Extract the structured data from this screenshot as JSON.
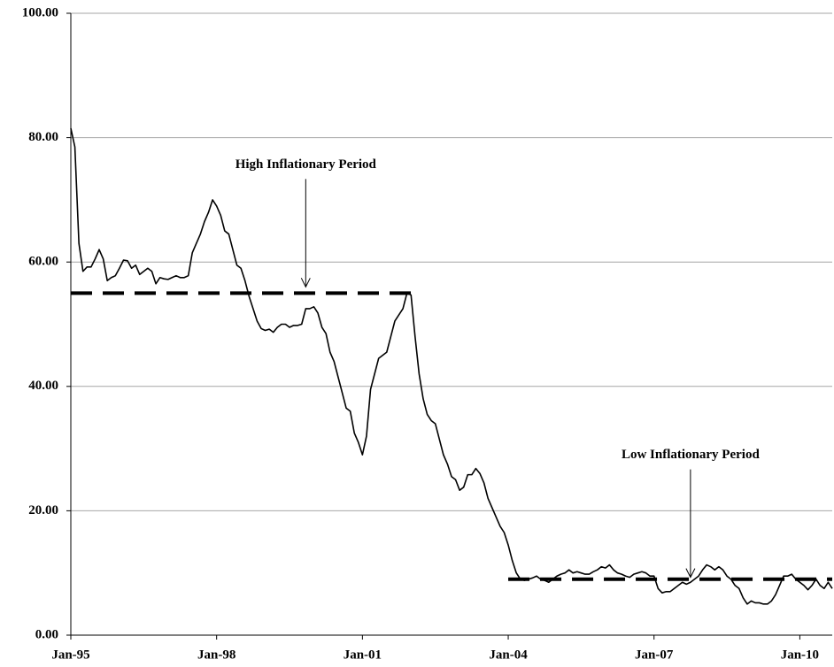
{
  "chart_data": {
    "type": "line",
    "categories": [
      "Jan-95",
      null,
      null,
      null,
      null,
      null,
      null,
      null,
      null,
      null,
      null,
      null,
      null,
      null,
      null,
      null,
      null,
      null,
      null,
      null,
      null,
      null,
      null,
      null,
      null,
      null,
      null,
      null,
      null,
      null,
      null,
      null,
      null,
      null,
      null,
      null,
      "Jan-98",
      null,
      null,
      null,
      null,
      null,
      null,
      null,
      null,
      null,
      null,
      null,
      null,
      null,
      null,
      null,
      null,
      null,
      null,
      null,
      null,
      null,
      null,
      null,
      null,
      null,
      null,
      null,
      null,
      null,
      null,
      null,
      null,
      null,
      null,
      null,
      "Jan-01",
      null,
      null,
      null,
      null,
      null,
      null,
      null,
      null,
      null,
      null,
      null,
      null,
      null,
      null,
      null,
      null,
      null,
      null,
      null,
      null,
      null,
      null,
      null,
      null,
      null,
      null,
      null,
      null,
      null,
      null,
      null,
      null,
      null,
      null,
      null,
      "Jan-04",
      null,
      null,
      null,
      null,
      null,
      null,
      null,
      null,
      null,
      null,
      null,
      null,
      null,
      null,
      null,
      null,
      null,
      null,
      null,
      null,
      null,
      null,
      null,
      null,
      null,
      null,
      null,
      null,
      null,
      null,
      null,
      null,
      null,
      null,
      null,
      "Jan-07",
      null,
      null,
      null,
      null,
      null,
      null,
      null,
      null,
      null,
      null,
      null,
      null,
      null,
      null,
      null,
      null,
      null,
      null,
      null,
      null,
      null,
      null,
      null,
      null,
      null,
      null,
      null,
      null,
      null,
      null,
      null,
      null,
      null,
      null,
      null,
      "Jan-10",
      null,
      null,
      null,
      null,
      null,
      null,
      null,
      null
    ],
    "values": [
      81.5,
      78.5,
      63,
      58.5,
      59.2,
      59.2,
      60.5,
      62,
      60.5,
      57,
      57.5,
      57.8,
      59,
      60.3,
      60.2,
      59,
      59.5,
      58,
      58.5,
      59,
      58.5,
      56.5,
      57.5,
      57.3,
      57.2,
      57.5,
      57.8,
      57.5,
      57.5,
      57.8,
      61.5,
      63,
      64.5,
      66.5,
      68,
      70,
      69,
      67.5,
      65,
      64.5,
      62,
      59.5,
      59,
      57,
      54.5,
      52.5,
      50.5,
      49.3,
      49,
      49.2,
      48.7,
      49.5,
      50,
      50,
      49.5,
      49.8,
      49.8,
      50,
      52.5,
      52.5,
      52.8,
      51.8,
      49.5,
      48.5,
      45.5,
      44,
      41.5,
      39,
      36.5,
      36,
      32.5,
      31,
      29,
      32,
      39.5,
      42,
      44.5,
      45,
      45.5,
      48,
      50.5,
      51.5,
      52.5,
      55,
      54.7,
      48,
      42,
      38,
      35.5,
      34.5,
      34,
      31.5,
      29,
      27.5,
      25.5,
      25,
      23.3,
      23.8,
      25.8,
      25.8,
      26.8,
      26,
      24.5,
      22,
      20.5,
      19,
      17.5,
      16.5,
      14.5,
      12,
      10,
      9,
      8.8,
      9,
      9.2,
      9.5,
      9,
      8.8,
      8.5,
      9,
      9.5,
      9.8,
      10,
      10.5,
      10,
      10.2,
      10,
      9.8,
      9.8,
      10.2,
      10.5,
      11,
      10.8,
      11.3,
      10.5,
      10,
      9.8,
      9.5,
      9.3,
      9.8,
      10,
      10.2,
      10,
      9.5,
      9.5,
      7.5,
      6.8,
      7,
      7,
      7.5,
      8,
      8.5,
      8.2,
      8.5,
      9,
      9.5,
      10.5,
      11.3,
      11,
      10.5,
      11,
      10.5,
      9.5,
      9,
      8,
      7.5,
      6,
      5,
      5.5,
      5.2,
      5.2,
      5,
      5,
      5.5,
      6.5,
      8,
      9.5,
      9.5,
      9.8,
      9,
      8.5,
      8,
      7.3,
      8,
      9,
      8,
      7.5,
      8.5,
      7.5
    ],
    "color": "#000000",
    "ylim": [
      0,
      100
    ],
    "yticks": [
      {
        "value": 0,
        "label": "0.00"
      },
      {
        "value": 20,
        "label": "20.00"
      },
      {
        "value": 40,
        "label": "40.00"
      },
      {
        "value": 60,
        "label": "60.00"
      },
      {
        "value": 80,
        "label": "80.00"
      },
      {
        "value": 100,
        "label": "100.00"
      }
    ],
    "grid": true,
    "reference_lines": [
      {
        "value": 55,
        "from": 0,
        "to": 84
      },
      {
        "value": 9,
        "from": 108,
        "to": 188
      }
    ],
    "annotations": [
      {
        "text": "High Inflationary Period",
        "index": 58,
        "value": 56
      },
      {
        "text": "Low Inflationary Period",
        "index": 153,
        "value": 9.3
      }
    ]
  }
}
